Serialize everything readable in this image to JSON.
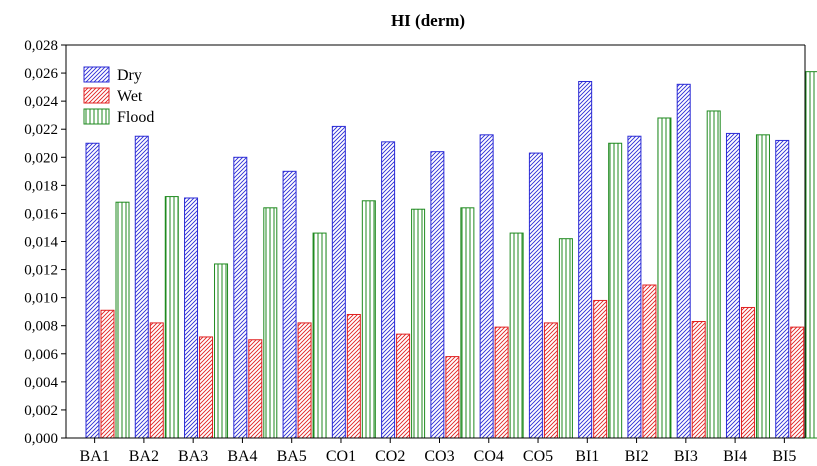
{
  "chart_data": {
    "type": "bar",
    "title": "HI (derm)",
    "xlabel": "",
    "ylabel": "",
    "categories": [
      "BA1",
      "BA2",
      "BA3",
      "BA4",
      "BA5",
      "CO1",
      "CO2",
      "CO3",
      "CO4",
      "CO5",
      "BI1",
      "BI2",
      "BI3",
      "BI4",
      "BI5"
    ],
    "series": [
      {
        "name": "Dry",
        "color": "#2b2bd6",
        "pattern": "dense-hatch",
        "values": [
          0.021,
          0.0215,
          0.0171,
          0.02,
          0.019,
          0.0222,
          0.0211,
          0.0204,
          0.0216,
          0.0203,
          0.0254,
          0.0215,
          0.0252,
          0.0217,
          0.0212
        ]
      },
      {
        "name": "Wet",
        "color": "#e02020",
        "pattern": "dense-hatch",
        "values": [
          0.0091,
          0.0082,
          0.0072,
          0.007,
          0.0082,
          0.0088,
          0.0074,
          0.0058,
          0.0079,
          0.0082,
          0.0098,
          0.0109,
          0.0083,
          0.0093,
          0.0079
        ]
      },
      {
        "name": "Flood",
        "color": "#1f8a1f",
        "pattern": "vertical-lines",
        "values": [
          0.0168,
          0.0172,
          0.0124,
          0.0164,
          0.0146,
          0.0169,
          0.0163,
          0.0164,
          0.0146,
          0.0142,
          0.021,
          0.0228,
          0.0233,
          0.0216,
          0.0261
        ]
      }
    ],
    "ylim": [
      0,
      0.028
    ],
    "yticks": [
      "0,000",
      "0,002",
      "0,004",
      "0,006",
      "0,008",
      "0,010",
      "0,012",
      "0,014",
      "0,016",
      "0,018",
      "0,020",
      "0,022",
      "0,024",
      "0,026",
      "0,028"
    ],
    "grid": false,
    "legend_position": "top-left"
  }
}
